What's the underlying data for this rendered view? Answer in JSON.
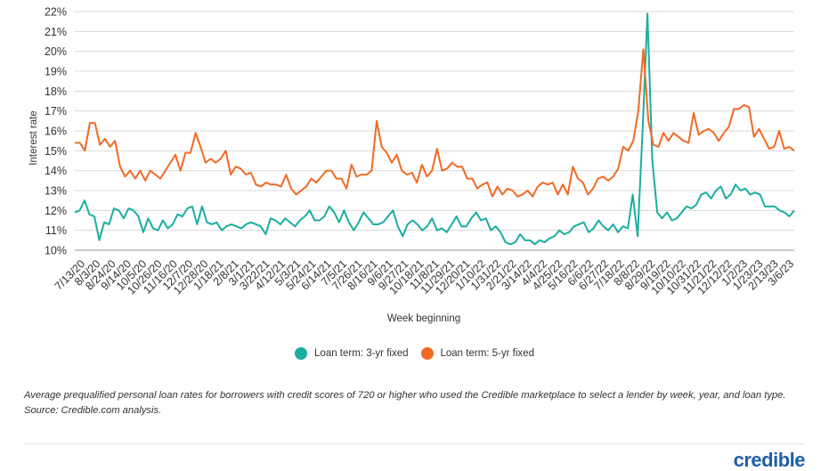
{
  "chart_data": {
    "type": "line",
    "ylabel": "Interest rate",
    "xlabel": "Week beginning",
    "ylim": [
      10,
      22
    ],
    "y_ticks": [
      "10%",
      "11%",
      "12%",
      "13%",
      "14%",
      "15%",
      "16%",
      "17%",
      "18%",
      "19%",
      "20%",
      "21%",
      "22%"
    ],
    "x_ticks": [
      "7/13/20",
      "8/3/20",
      "8/24/20",
      "9/14/20",
      "10/5/20",
      "10/26/20",
      "11/16/20",
      "12/7/20",
      "12/28/20",
      "1/18/21",
      "2/8/21",
      "3/1/21",
      "3/22/21",
      "4/12/21",
      "5/3/21",
      "5/24/21",
      "6/14/21",
      "7/5/21",
      "7/26/21",
      "8/16/21",
      "9/6/21",
      "9/27/21",
      "10/18/21",
      "11/8/21",
      "11/29/21",
      "12/20/21",
      "1/10/22",
      "1/31/22",
      "2/21/22",
      "3/14/22",
      "4/4/22",
      "4/25/22",
      "5/16/22",
      "6/6/22",
      "6/27/22",
      "7/18/22",
      "8/8/22",
      "8/29/22",
      "9/19/22",
      "10/10/22",
      "10/31/22",
      "11/21/22",
      "12/12/22",
      "1/2/23",
      "1/23/23",
      "2/13/23",
      "3/6/23"
    ],
    "grid": true,
    "legend_position": "bottom",
    "series": [
      {
        "name": "Loan term: 3-yr fixed",
        "color": "#1aae9f",
        "values": [
          11.9,
          12.0,
          12.5,
          11.8,
          11.7,
          10.5,
          11.4,
          11.3,
          12.1,
          12.0,
          11.6,
          12.1,
          12.0,
          11.7,
          10.9,
          11.6,
          11.1,
          11.0,
          11.5,
          11.1,
          11.3,
          11.8,
          11.7,
          12.1,
          12.2,
          11.3,
          12.2,
          11.4,
          11.3,
          11.4,
          11.0,
          11.2,
          11.3,
          11.2,
          11.1,
          11.3,
          11.4,
          11.3,
          11.2,
          10.8,
          11.6,
          11.5,
          11.3,
          11.6,
          11.4,
          11.2,
          11.5,
          11.7,
          12.0,
          11.5,
          11.5,
          11.7,
          12.2,
          11.9,
          11.4,
          12.0,
          11.4,
          11.0,
          11.4,
          11.9,
          11.6,
          11.3,
          11.3,
          11.4,
          11.7,
          12.0,
          11.2,
          10.7,
          11.3,
          11.5,
          11.3,
          11.0,
          11.2,
          11.6,
          11.0,
          11.1,
          10.9,
          11.3,
          11.7,
          11.2,
          11.2,
          11.6,
          11.9,
          11.5,
          11.6,
          11.0,
          11.2,
          10.9,
          10.4,
          10.3,
          10.4,
          10.8,
          10.5,
          10.5,
          10.3,
          10.5,
          10.4,
          10.6,
          10.7,
          11.0,
          10.8,
          10.9,
          11.2,
          11.3,
          11.4,
          10.9,
          11.1,
          11.5,
          11.2,
          11.0,
          11.3,
          10.9,
          11.2,
          11.1,
          12.8,
          10.7,
          16.0,
          21.9,
          14.5,
          11.9,
          11.6,
          11.9,
          11.5,
          11.6,
          11.9,
          12.2,
          12.1,
          12.3,
          12.8,
          12.9,
          12.6,
          13.0,
          13.2,
          12.6,
          12.8,
          13.3,
          13.0,
          13.1,
          12.8,
          12.9,
          12.8,
          12.2,
          12.2,
          12.2,
          12.0,
          11.9,
          11.7,
          12.0
        ]
      },
      {
        "name": "Loan term: 5-yr fixed",
        "color": "#f06a24",
        "values": [
          15.4,
          15.4,
          15.0,
          16.4,
          16.4,
          15.3,
          15.6,
          15.2,
          15.5,
          14.2,
          13.7,
          14.0,
          13.6,
          14.0,
          13.5,
          14.0,
          13.8,
          13.6,
          14.0,
          14.4,
          14.8,
          14.0,
          14.9,
          14.9,
          15.9,
          15.2,
          14.4,
          14.6,
          14.4,
          14.6,
          15.0,
          13.8,
          14.2,
          14.1,
          13.8,
          13.9,
          13.3,
          13.2,
          13.4,
          13.3,
          13.3,
          13.2,
          13.8,
          13.1,
          12.8,
          13.0,
          13.2,
          13.6,
          13.4,
          13.7,
          14.0,
          14.0,
          13.6,
          13.6,
          13.1,
          14.3,
          13.7,
          13.8,
          13.8,
          14.0,
          16.5,
          15.2,
          14.9,
          14.4,
          14.8,
          14.0,
          13.8,
          13.9,
          13.4,
          14.3,
          13.7,
          14.0,
          15.1,
          14.0,
          14.1,
          14.4,
          14.2,
          14.2,
          13.6,
          13.6,
          13.1,
          13.3,
          13.4,
          12.7,
          13.2,
          12.8,
          13.1,
          13.0,
          12.7,
          12.8,
          13.0,
          12.7,
          13.2,
          13.4,
          13.3,
          13.4,
          12.8,
          13.3,
          12.8,
          14.2,
          13.6,
          13.4,
          12.8,
          13.1,
          13.6,
          13.7,
          13.5,
          13.7,
          14.1,
          15.2,
          15.0,
          15.5,
          17.0,
          20.1,
          16.5,
          15.3,
          15.2,
          15.9,
          15.5,
          15.9,
          15.7,
          15.5,
          15.4,
          16.9,
          15.8,
          16.0,
          16.1,
          15.9,
          15.5,
          15.9,
          16.2,
          17.1,
          17.1,
          17.3,
          17.2,
          15.7,
          16.1,
          15.6,
          15.1,
          15.2,
          16.0,
          15.1,
          15.2,
          15.0
        ]
      }
    ]
  },
  "caption": "Average prequalified personal loan rates for borrowers with credit scores of 720 or higher who used the Credible marketplace to select a lender by week, year, and loan type. Source: Credible.com analysis.",
  "brand": "credible"
}
